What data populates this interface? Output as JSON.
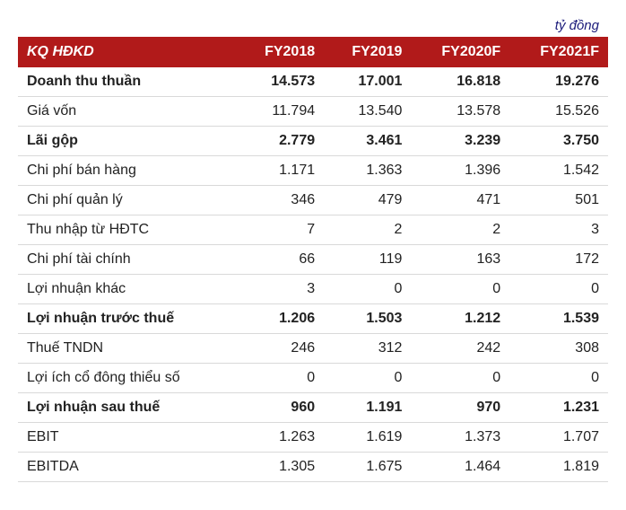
{
  "unit_label": "tỷ đồng",
  "header": {
    "title": "KQ HĐKD",
    "cols": [
      "FY2018",
      "FY2019",
      "FY2020F",
      "FY2021F"
    ]
  },
  "rows": [
    {
      "label": "Doanh thu thuần",
      "v": [
        "14.573",
        "17.001",
        "16.818",
        "19.276"
      ],
      "bold": true
    },
    {
      "label": "Giá vốn",
      "v": [
        "11.794",
        "13.540",
        "13.578",
        "15.526"
      ],
      "bold": false
    },
    {
      "label": "Lãi gộp",
      "v": [
        "2.779",
        "3.461",
        "3.239",
        "3.750"
      ],
      "bold": true
    },
    {
      "label": "Chi phí bán hàng",
      "v": [
        "1.171",
        "1.363",
        "1.396",
        "1.542"
      ],
      "bold": false
    },
    {
      "label": "Chi phí quản lý",
      "v": [
        "346",
        "479",
        "471",
        "501"
      ],
      "bold": false
    },
    {
      "label": "Thu nhập từ HĐTC",
      "v": [
        "7",
        "2",
        "2",
        "3"
      ],
      "bold": false
    },
    {
      "label": "Chi phí tài chính",
      "v": [
        "66",
        "119",
        "163",
        "172"
      ],
      "bold": false
    },
    {
      "label": "Lợi nhuận khác",
      "v": [
        "3",
        "0",
        "0",
        "0"
      ],
      "bold": false
    },
    {
      "label": "Lợi nhuận trước thuế",
      "v": [
        "1.206",
        "1.503",
        "1.212",
        "1.539"
      ],
      "bold": true
    },
    {
      "label": "Thuế TNDN",
      "v": [
        "246",
        "312",
        "242",
        "308"
      ],
      "bold": false
    },
    {
      "label": "Lợi ích cổ đông thiểu số",
      "v": [
        "0",
        "0",
        "0",
        "0"
      ],
      "bold": false
    },
    {
      "label": "Lợi nhuận sau thuế",
      "v": [
        "960",
        "1.191",
        "970",
        "1.231"
      ],
      "bold": true
    },
    {
      "label": "EBIT",
      "v": [
        "1.263",
        "1.619",
        "1.373",
        "1.707"
      ],
      "bold": false
    },
    {
      "label": "EBITDA",
      "v": [
        "1.305",
        "1.675",
        "1.464",
        "1.819"
      ],
      "bold": false
    }
  ],
  "colors": {
    "header_bg": "#b11a1a",
    "header_fg": "#ffffff",
    "unit_fg": "#1a1a7a",
    "row_border": "#d9d9d9",
    "text": "#222222"
  }
}
